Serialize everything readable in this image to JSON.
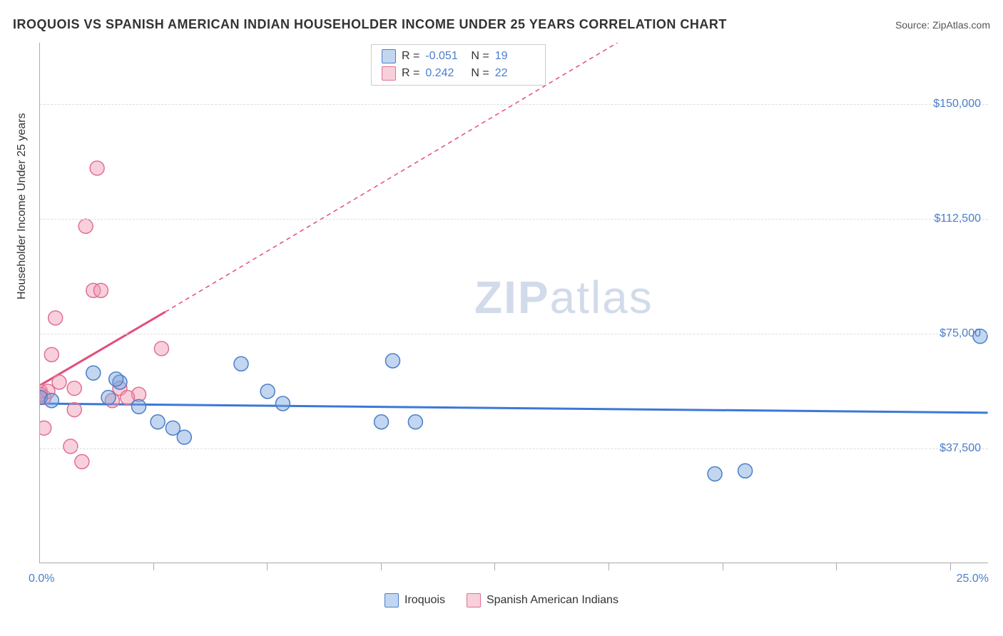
{
  "header": {
    "title": "IROQUOIS VS SPANISH AMERICAN INDIAN HOUSEHOLDER INCOME UNDER 25 YEARS CORRELATION CHART",
    "source": "Source: ZipAtlas.com"
  },
  "axes": {
    "y_title": "Householder Income Under 25 years",
    "x_min_label": "0.0%",
    "x_max_label": "25.0%",
    "xlim": [
      0,
      25
    ],
    "ylim": [
      0,
      170000
    ],
    "y_gridlines": [
      37500,
      75000,
      112500,
      150000
    ],
    "y_tick_labels": [
      "$37,500",
      "$75,000",
      "$112,500",
      "$150,000"
    ],
    "x_ticks": [
      3,
      6,
      9,
      12,
      15,
      18,
      21,
      24
    ],
    "grid_color": "#dddddd",
    "axis_color": "#aaaaaa"
  },
  "series": [
    {
      "name": "Iroquois",
      "key": "iroquois",
      "fill": "rgba(120,165,220,0.45)",
      "stroke": "#4a7ec9",
      "line_color": "#3b78d8",
      "r_value": "-0.051",
      "n_value": "19",
      "trend": {
        "x1": 0,
        "y1": 52000,
        "x2": 25,
        "y2": 49000,
        "dash_after": 25
      },
      "points": [
        [
          0.0,
          54000
        ],
        [
          0.3,
          53000
        ],
        [
          1.4,
          62000
        ],
        [
          2.1,
          59000
        ],
        [
          2.6,
          51000
        ],
        [
          3.5,
          44000
        ],
        [
          3.1,
          46000
        ],
        [
          3.8,
          41000
        ],
        [
          5.3,
          65000
        ],
        [
          6.0,
          56000
        ],
        [
          6.4,
          52000
        ],
        [
          9.0,
          46000
        ],
        [
          9.9,
          46000
        ],
        [
          9.3,
          66000
        ],
        [
          17.8,
          29000
        ],
        [
          18.6,
          30000
        ],
        [
          24.8,
          74000
        ],
        [
          2.0,
          60000
        ],
        [
          1.8,
          54000
        ]
      ]
    },
    {
      "name": "Spanish American Indians",
      "key": "spanish",
      "fill": "rgba(240,150,175,0.45)",
      "stroke": "#e06f94",
      "line_color": "#e34d7a",
      "r_value": "0.242",
      "n_value": "22",
      "trend": {
        "x1": 0,
        "y1": 58000,
        "x2": 3.3,
        "y2": 82000,
        "dash_after": 22,
        "dash_y2": 220000
      },
      "points": [
        [
          0.0,
          54000
        ],
        [
          0.0,
          56000
        ],
        [
          0.1,
          54000
        ],
        [
          0.2,
          56000
        ],
        [
          0.3,
          68000
        ],
        [
          0.4,
          80000
        ],
        [
          0.8,
          38000
        ],
        [
          0.9,
          57000
        ],
        [
          1.1,
          33000
        ],
        [
          1.2,
          110000
        ],
        [
          1.4,
          89000
        ],
        [
          1.6,
          89000
        ],
        [
          1.5,
          129000
        ],
        [
          1.9,
          53000
        ],
        [
          2.1,
          57000
        ],
        [
          2.6,
          55000
        ],
        [
          3.2,
          70000
        ],
        [
          0.0,
          55000
        ],
        [
          0.5,
          59000
        ],
        [
          0.9,
          50000
        ],
        [
          0.1,
          44000
        ],
        [
          2.3,
          54000
        ]
      ]
    }
  ],
  "styling": {
    "marker_radius": 10,
    "marker_stroke_width": 1.5,
    "trend_line_width": 3,
    "background": "#ffffff",
    "label_color": "#4a7ec9",
    "text_color": "#333333",
    "title_fontsize": 18,
    "label_fontsize": 16
  },
  "legend": {
    "series1": "Iroquois",
    "series2": "Spanish American Indians"
  },
  "watermark": {
    "part1": "ZIP",
    "part2": "atlas"
  },
  "stats_labels": {
    "r": "R =",
    "n": "N ="
  }
}
